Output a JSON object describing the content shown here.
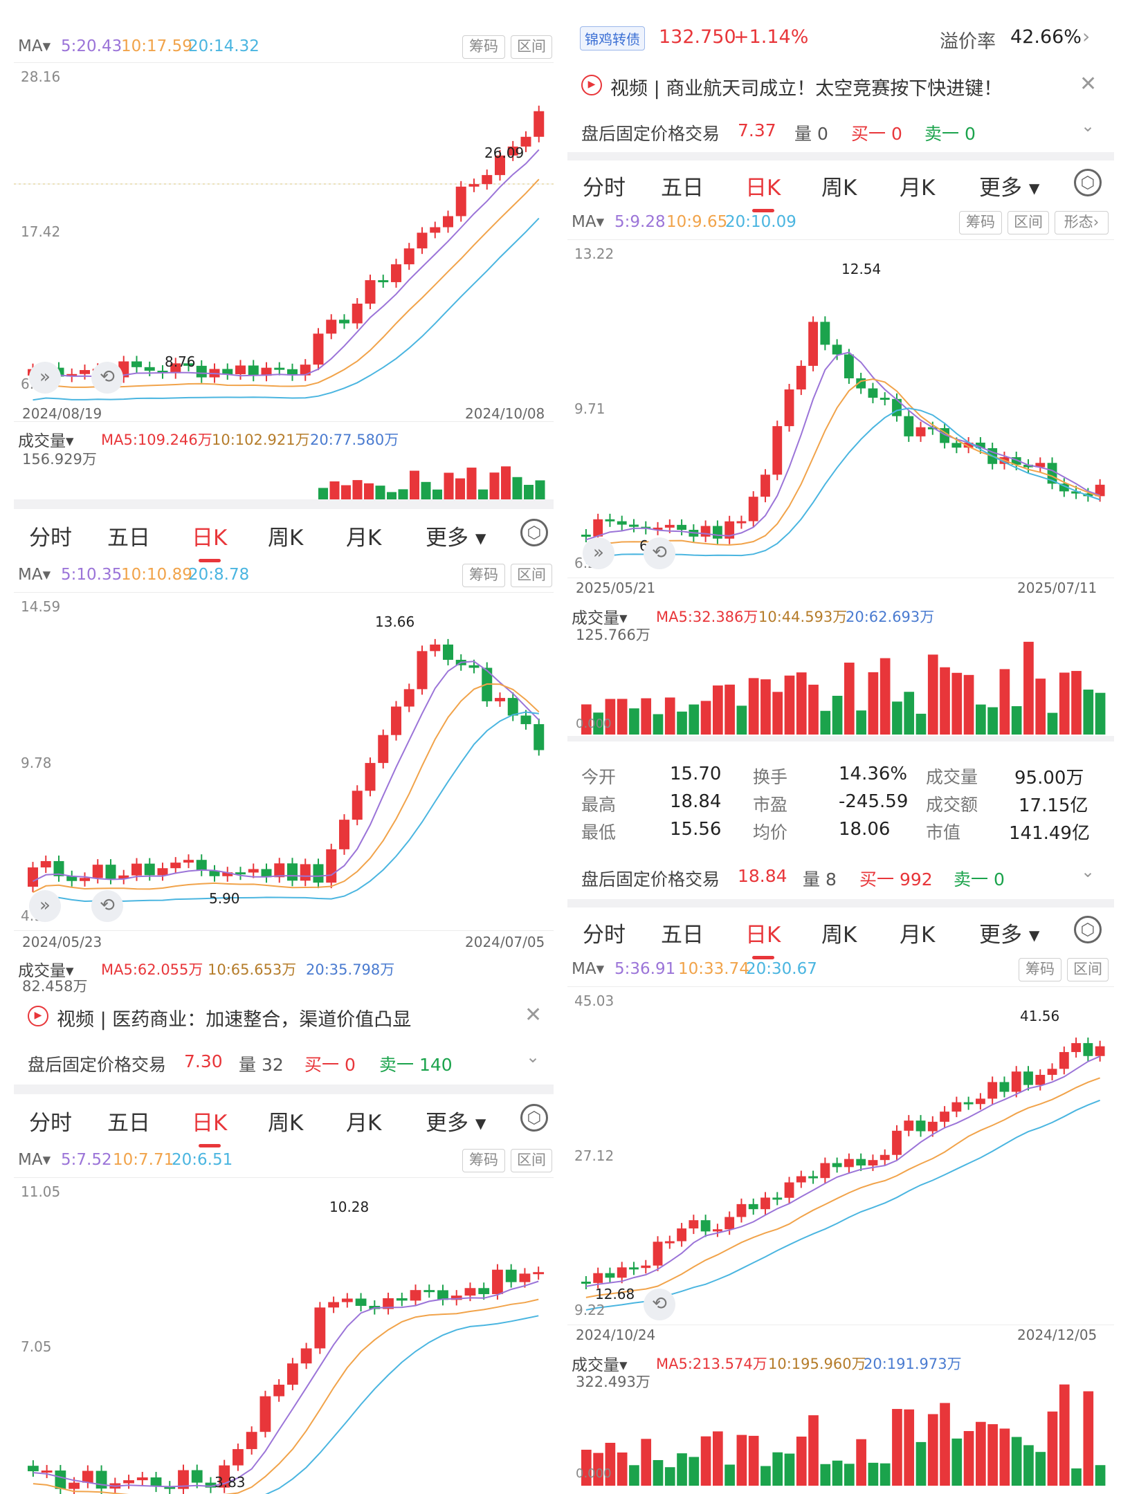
{
  "tabs": [
    "分时",
    "五日",
    "日K",
    "周K",
    "月K",
    "更多"
  ],
  "ma_label": "MA",
  "btn_chips": "筹码",
  "btn_range": "区间",
  "btn_shape": "形态",
  "vol_label": "成交量",
  "colors": {
    "red": "#e8363a",
    "green": "#1ba34c",
    "ma5": "#9b74d8",
    "ma10": "#f1a34a",
    "ma20": "#4ab5e0"
  },
  "p1": {
    "ma": {
      "ma5": "5:20.43",
      "ma10": "10:17.59",
      "ma20": "20:14.32"
    },
    "axis": {
      "top": "28.16",
      "mid": "17.42",
      "bottom": "6.68"
    },
    "dates": {
      "start": "2024/08/19",
      "end": "2024/10/08"
    },
    "hi": "26.09",
    "lo": "8.76",
    "vol": {
      "cur": "156.929万",
      "ma5": "MA5:109.246万",
      "ma10": "10:102.921万",
      "ma20": "20:77.580万"
    }
  },
  "p2": {
    "ma": {
      "ma5": "5:10.35",
      "ma10": "10:10.89",
      "ma20": "20:8.78"
    },
    "axis": {
      "top": "14.59",
      "mid": "9.78",
      "bottom": "4.97"
    },
    "dates": {
      "start": "2024/05/23",
      "end": "2024/07/05"
    },
    "hi": "13.66",
    "lo": "5.90",
    "vol": {
      "cur": "82.458万",
      "ma5": "MA5:62.055万",
      "ma10": "10:65.653万",
      "ma20": "20:35.798万"
    },
    "news": "视频 | 医药商业：加速整合，渠道价值凸显",
    "after": {
      "label": "盘后固定价格交易",
      "price": "7.30",
      "vol": "量 32",
      "buy": "买一 0",
      "sell": "卖一 140"
    }
  },
  "p3": {
    "ma": {
      "ma5": "5:7.52",
      "ma10": "10:7.71",
      "ma20": "20:6.51"
    },
    "axis": {
      "top": "11.05",
      "mid": "7.05"
    },
    "hi": "10.28",
    "lo": "3.83"
  },
  "p4": {
    "bond": {
      "tag": "锦鸡转债",
      "price": "132.750",
      "chg": "+1.14%",
      "prem_label": "溢价率",
      "prem": "42.66%"
    },
    "news": "视频 | 商业航天司成立！太空竞赛按下快进键！",
    "after": {
      "label": "盘后固定价格交易",
      "price": "7.37",
      "vol": "量 0",
      "buy": "买一 0",
      "sell": "卖一 0"
    },
    "ma": {
      "ma5": "5:9.28",
      "ma10": "10:9.65",
      "ma20": "20:10.09"
    },
    "axis": {
      "top": "13.22",
      "mid": "9.71",
      "bottom": "6.20"
    },
    "dates": {
      "start": "2025/05/21",
      "end": "2025/07/11"
    },
    "hi": "12.54",
    "lo": "6.88",
    "vol": {
      "cur": "125.766万",
      "ma5": "MA5:32.386万",
      "ma10": "10:44.593万",
      "ma20": "20:62.693万",
      "zero": "0.000"
    },
    "stats": [
      {
        "k": "今开",
        "v": "15.70",
        "c": "green"
      },
      {
        "k": "换手",
        "v": "14.36%",
        "c": "dark"
      },
      {
        "k": "成交量",
        "v": "95.00万",
        "c": "dark"
      },
      {
        "k": "最高",
        "v": "18.84",
        "c": "red"
      },
      {
        "k": "市盈",
        "v": "-245.59",
        "c": "dark"
      },
      {
        "k": "成交额",
        "v": "17.15亿",
        "c": "dark"
      },
      {
        "k": "最低",
        "v": "15.56",
        "c": "green"
      },
      {
        "k": "均价",
        "v": "18.06",
        "c": "red"
      },
      {
        "k": "市值",
        "v": "141.49亿",
        "c": "dark"
      }
    ],
    "after2": {
      "label": "盘后固定价格交易",
      "price": "18.84",
      "vol": "量 8",
      "buy": "买一 992",
      "sell": "卖一 0"
    }
  },
  "p5": {
    "ma": {
      "ma5": "5:36.91",
      "ma10": "10:33.74",
      "ma20": "20:30.67"
    },
    "axis": {
      "top": "45.03",
      "mid": "27.12",
      "bottom": "9.22"
    },
    "dates": {
      "start": "2024/10/24",
      "end": "2024/12/05"
    },
    "hi": "41.56",
    "lo": "12.68",
    "vol": {
      "cur": "322.493万",
      "ma5": "MA5:213.574万",
      "ma10": "10:195.960万",
      "ma20": "20:191.973万",
      "zero": "0.000"
    }
  }
}
